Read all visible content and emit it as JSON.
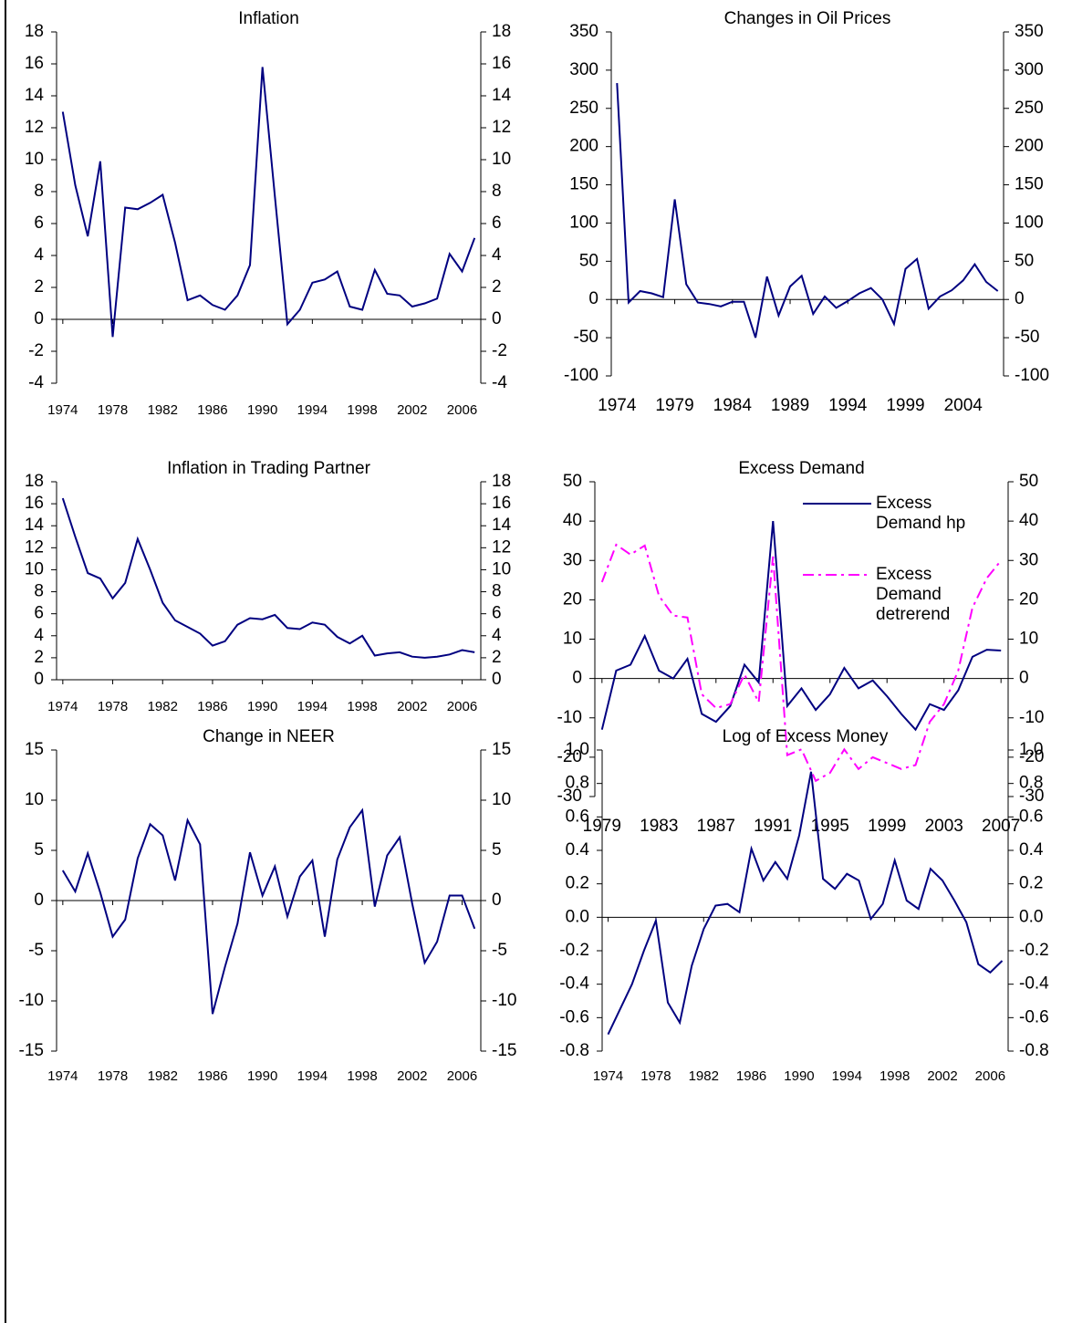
{
  "chart_data": [
    {
      "type": "line",
      "title": "Inflation",
      "x": [
        1974,
        1975,
        1976,
        1977,
        1978,
        1979,
        1980,
        1981,
        1982,
        1983,
        1984,
        1985,
        1986,
        1987,
        1988,
        1989,
        1990,
        1991,
        1992,
        1993,
        1994,
        1995,
        1996,
        1997,
        1998,
        1999,
        2000,
        2001,
        2002,
        2003,
        2004,
        2005,
        2006,
        2007
      ],
      "values": [
        13.0,
        8.4,
        5.2,
        9.9,
        -1.1,
        7.0,
        6.9,
        7.3,
        7.8,
        4.8,
        1.2,
        1.5,
        0.9,
        0.6,
        1.5,
        3.4,
        15.8,
        7.7,
        -0.3,
        0.6,
        2.3,
        2.5,
        3.0,
        0.8,
        0.6,
        3.1,
        1.6,
        1.5,
        0.8,
        1.0,
        1.3,
        4.1,
        3.0,
        5.1
      ],
      "color": "#000080",
      "xlim": [
        1973.5,
        2007.5
      ],
      "xticks": [
        1974,
        1978,
        1982,
        1986,
        1990,
        1994,
        1998,
        2002,
        2006
      ],
      "ylim": [
        -4,
        18
      ],
      "yticks": [
        -4,
        -2,
        0,
        2,
        4,
        6,
        8,
        10,
        12,
        14,
        16,
        18
      ],
      "y2lim": [
        -4,
        18
      ],
      "y2ticks": [
        -4,
        -2,
        0,
        2,
        4,
        6,
        8,
        10,
        12,
        14,
        16,
        18
      ]
    },
    {
      "type": "line",
      "title": "Changes in Oil Prices",
      "x": [
        1974,
        1975,
        1976,
        1977,
        1978,
        1979,
        1980,
        1981,
        1982,
        1983,
        1984,
        1985,
        1986,
        1987,
        1988,
        1989,
        1990,
        1991,
        1992,
        1993,
        1994,
        1995,
        1996,
        1997,
        1998,
        1999,
        2000,
        2001,
        2002,
        2003,
        2004,
        2005,
        2006,
        2007
      ],
      "values": [
        283,
        -4,
        11,
        8,
        3,
        131,
        20,
        -4,
        -6,
        -9,
        -3,
        -3,
        -50,
        30,
        -21,
        17,
        31,
        -19,
        4,
        -11,
        -2,
        8,
        15,
        0,
        -32,
        40,
        53,
        -12,
        4,
        12,
        25,
        46,
        23,
        11
      ],
      "color": "#000080",
      "xlim": [
        1973.5,
        2007.5
      ],
      "xticks": [
        1974,
        1979,
        1984,
        1989,
        1994,
        1999,
        2004
      ],
      "ylim": [
        -100,
        350
      ],
      "yticks": [
        -100,
        -50,
        0,
        50,
        100,
        150,
        200,
        250,
        300,
        350
      ],
      "y2lim": [
        -100,
        350
      ],
      "y2ticks": [
        -100,
        -50,
        0,
        50,
        100,
        150,
        200,
        250,
        300,
        350
      ]
    },
    {
      "type": "line",
      "title": "Inflation in Trading Partner",
      "x": [
        1974,
        1975,
        1976,
        1977,
        1978,
        1979,
        1980,
        1981,
        1982,
        1983,
        1984,
        1985,
        1986,
        1987,
        1988,
        1989,
        1990,
        1991,
        1992,
        1993,
        1994,
        1995,
        1996,
        1997,
        1998,
        1999,
        2000,
        2001,
        2002,
        2003,
        2004,
        2005,
        2006,
        2007
      ],
      "values": [
        16.5,
        13.0,
        9.7,
        9.2,
        7.4,
        8.8,
        12.8,
        10.0,
        7.0,
        5.4,
        4.8,
        4.2,
        3.1,
        3.5,
        5.0,
        5.6,
        5.5,
        5.9,
        4.7,
        4.6,
        5.2,
        5.0,
        3.9,
        3.3,
        4.0,
        2.2,
        2.4,
        2.5,
        2.1,
        2.0,
        2.1,
        2.3,
        2.7,
        2.5
      ],
      "color": "#000080",
      "xlim": [
        1973.5,
        2007.5
      ],
      "xticks": [
        1974,
        1978,
        1982,
        1986,
        1990,
        1994,
        1998,
        2002,
        2006
      ],
      "ylim": [
        0,
        18
      ],
      "yticks": [
        0,
        2,
        4,
        6,
        8,
        10,
        12,
        14,
        16,
        18
      ],
      "y2lim": [
        0,
        18
      ],
      "y2ticks": [
        0,
        2,
        4,
        6,
        8,
        10,
        12,
        14,
        16,
        18
      ]
    },
    {
      "type": "line",
      "title": "Excess Demand",
      "x": [
        1979,
        1980,
        1981,
        1982,
        1983,
        1984,
        1985,
        1986,
        1987,
        1988,
        1989,
        1990,
        1991,
        1992,
        1993,
        1994,
        1995,
        1996,
        1997,
        1998,
        1999,
        2000,
        2001,
        2002,
        2003,
        2004,
        2005,
        2006,
        2007
      ],
      "series": [
        {
          "name": "Excess Demand hp",
          "color": "#000080",
          "dash": "solid",
          "values": [
            -13,
            2,
            3.5,
            10.8,
            2,
            0,
            5,
            -9,
            -11,
            -7,
            3.5,
            -1,
            40,
            -7,
            -2.5,
            -8,
            -4,
            2.7,
            -2.5,
            -0.5,
            -4.5,
            -9,
            -13,
            -6.5,
            -8,
            -3,
            5.5,
            7.3,
            7.1
          ]
        },
        {
          "name": "Excess Demand detrerend",
          "color": "#ff00ff",
          "dash": "dashdot",
          "values": [
            24.5,
            34,
            31.5,
            33.8,
            21,
            16,
            15.5,
            -4,
            -7.5,
            -6.5,
            1,
            -6,
            31,
            -19.5,
            -18,
            -26,
            -24,
            -18,
            -23,
            -20,
            -21.5,
            -23,
            -22,
            -11,
            -6.5,
            2,
            18,
            25.5,
            30
          ]
        }
      ],
      "legend": "upper right",
      "xlim": [
        1978.5,
        2007.5
      ],
      "xticks": [
        1979,
        1983,
        1987,
        1991,
        1995,
        1999,
        2003,
        2007
      ],
      "ylim": [
        -30,
        50
      ],
      "yticks": [
        -30,
        -20,
        -10,
        0,
        10,
        20,
        30,
        40,
        50
      ],
      "y2lim": [
        -30,
        50
      ],
      "y2ticks": [
        -30,
        -20,
        -10,
        0,
        10,
        20,
        30,
        40,
        50
      ]
    },
    {
      "type": "line",
      "title": "Change in NEER",
      "x": [
        1974,
        1975,
        1976,
        1977,
        1978,
        1979,
        1980,
        1981,
        1982,
        1983,
        1984,
        1985,
        1986,
        1987,
        1988,
        1989,
        1990,
        1991,
        1992,
        1993,
        1994,
        1995,
        1996,
        1997,
        1998,
        1999,
        2000,
        2001,
        2002,
        2003,
        2004,
        2005,
        2006,
        2007
      ],
      "values": [
        3.0,
        0.9,
        4.7,
        0.8,
        -3.6,
        -1.9,
        4.2,
        7.6,
        6.5,
        2.0,
        8.0,
        5.6,
        -11.3,
        -6.6,
        -2.3,
        4.8,
        0.5,
        3.4,
        -1.6,
        2.4,
        4.0,
        -3.6,
        4.1,
        7.3,
        9.0,
        -0.6,
        4.5,
        6.3,
        -0.3,
        -6.2,
        -4.1,
        0.5,
        0.5,
        -2.8
      ],
      "color": "#000080",
      "xlim": [
        1973.5,
        2007.5
      ],
      "xticks": [
        1974,
        1978,
        1982,
        1986,
        1990,
        1994,
        1998,
        2002,
        2006
      ],
      "ylim": [
        -15,
        15
      ],
      "yticks": [
        -15,
        -10,
        -5,
        0,
        5,
        10,
        15
      ],
      "y2lim": [
        -15,
        15
      ],
      "y2ticks": [
        -15,
        -10,
        -5,
        0,
        5,
        10,
        15
      ]
    },
    {
      "type": "line",
      "title": "Log of Excess Money",
      "x": [
        1974,
        1975,
        1976,
        1977,
        1978,
        1979,
        1980,
        1981,
        1982,
        1983,
        1984,
        1985,
        1986,
        1987,
        1988,
        1989,
        1990,
        1991,
        1992,
        1993,
        1994,
        1995,
        1996,
        1997,
        1998,
        1999,
        2000,
        2001,
        2002,
        2003,
        2004,
        2005,
        2006,
        2007
      ],
      "values": [
        -0.7,
        -0.55,
        -0.4,
        -0.2,
        -0.02,
        -0.51,
        -0.63,
        -0.29,
        -0.07,
        0.07,
        0.08,
        0.03,
        0.41,
        0.22,
        0.33,
        0.23,
        0.49,
        0.87,
        0.23,
        0.17,
        0.26,
        0.22,
        -0.01,
        0.08,
        0.34,
        0.1,
        0.05,
        0.29,
        0.22,
        0.1,
        -0.03,
        -0.28,
        -0.33,
        -0.26
      ],
      "color": "#000080",
      "xlim": [
        1973.5,
        2007.5
      ],
      "xticks": [
        1974,
        1978,
        1982,
        1986,
        1990,
        1994,
        1998,
        2002,
        2006
      ],
      "ylim": [
        -0.8,
        1.0
      ],
      "yticks": [
        -0.8,
        -0.6,
        -0.4,
        -0.2,
        {
          "value": 0,
          "label": "0.0"
        },
        0.2,
        0.4,
        0.6,
        0.8,
        {
          "value": 1,
          "label": "1.0"
        }
      ],
      "y2lim": [
        -0.8,
        1.0
      ],
      "y2ticks": [
        -0.8,
        -0.6,
        -0.4,
        -0.2,
        {
          "value": 0,
          "label": "0.0"
        },
        0.2,
        0.4,
        0.6,
        0.8,
        {
          "value": 1,
          "label": "1.0"
        }
      ]
    }
  ]
}
